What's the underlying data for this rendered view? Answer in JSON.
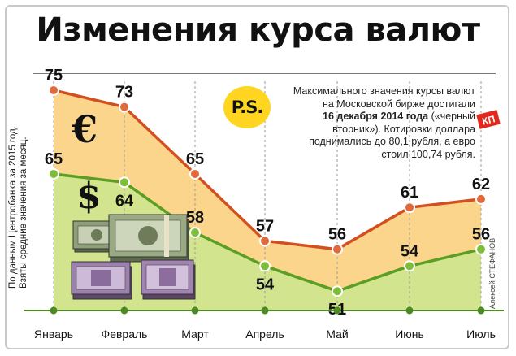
{
  "title": "Изменения курса валют",
  "side_note": [
    "По данным Центробанка за 2015 год.",
    "Взяты средние значения за месяц."
  ],
  "credit": "Алексей СТЕФАНОВ",
  "ps": {
    "badge": "P.S.",
    "lines": [
      "Максимального значения курсы валют",
      "на Московской бирже достигали",
      [
        "16 декабря 2014 года",
        " («черный"
      ],
      "вторник»). Котировки доллара",
      "поднимались до 80,1 рубля, а евро",
      "стоил 100,74 рубля."
    ]
  },
  "logo_text": "КП",
  "icons": [
    "euro-sign-icon",
    "dollar-sign-icon",
    "money-stack-icon",
    "kp-logo-icon"
  ],
  "colors": {
    "euro_line": "#d2501f",
    "euro_fill": "#fbd58c",
    "dollar_line": "#5a9e23",
    "dollar_fill": "#d2e48e",
    "marker_euro": "#e06a3d",
    "marker_dollar": "#7dbd3a",
    "grid": "#9a9a9a"
  },
  "chart_data": {
    "type": "line",
    "categories": [
      "Январь",
      "Февраль",
      "Март",
      "Апрель",
      "Май",
      "Июнь",
      "Июль"
    ],
    "series": [
      {
        "symbol": "€",
        "values": [
          75,
          73,
          65,
          57,
          56,
          61,
          62
        ]
      },
      {
        "symbol": "$",
        "values": [
          65,
          64,
          58,
          54,
          51,
          54,
          56
        ]
      }
    ],
    "ylim": [
      40,
      80
    ],
    "grid": "vertical dashed lines",
    "legend": "currency symbols on the left"
  }
}
